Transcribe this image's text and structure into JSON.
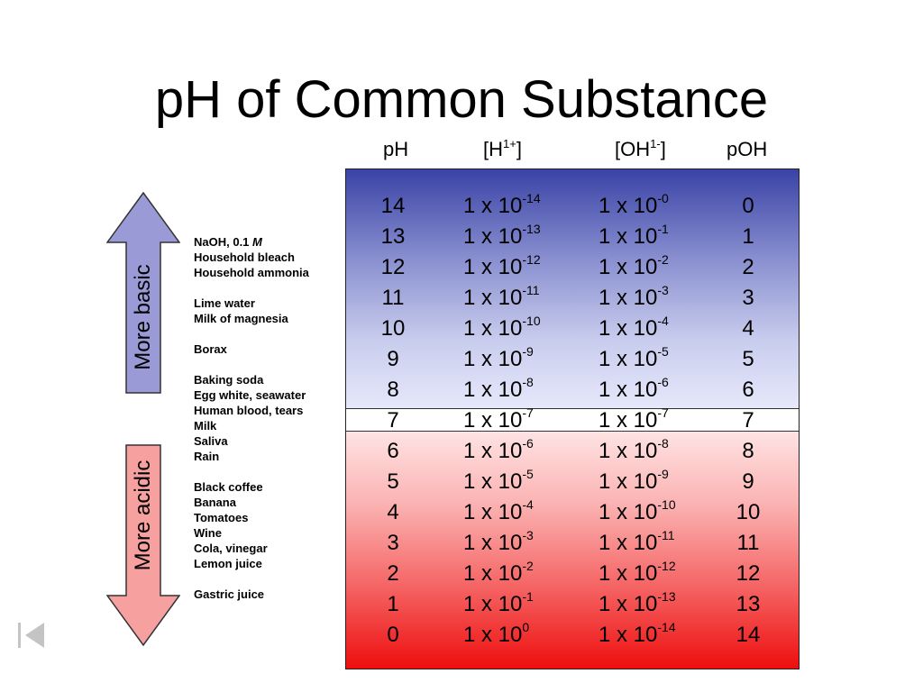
{
  "title": "pH of Common Substance",
  "headers": {
    "ph": "pH",
    "h_base": "[H",
    "h_sup": "1+",
    "h_close": "]",
    "oh_base": "[OH",
    "oh_sup": "1-",
    "oh_close": "]",
    "poh": "pOH"
  },
  "rows": [
    {
      "ph": "14",
      "h_base": "1 x 10",
      "h_exp": "-14",
      "oh_base": "1 x 10",
      "oh_exp": "-0",
      "poh": "0"
    },
    {
      "ph": "13",
      "h_base": "1 x 10",
      "h_exp": "-13",
      "oh_base": "1 x 10",
      "oh_exp": "-1",
      "poh": "1"
    },
    {
      "ph": "12",
      "h_base": "1 x 10",
      "h_exp": "-12",
      "oh_base": "1 x 10",
      "oh_exp": "-2",
      "poh": "2"
    },
    {
      "ph": "11",
      "h_base": "1 x 10",
      "h_exp": "-11",
      "oh_base": "1 x 10",
      "oh_exp": "-3",
      "poh": "3"
    },
    {
      "ph": "10",
      "h_base": "1 x 10",
      "h_exp": "-10",
      "oh_base": "1 x 10",
      "oh_exp": "-4",
      "poh": "4"
    },
    {
      "ph": "9",
      "h_base": "1 x 10",
      "h_exp": "-9",
      "oh_base": "1 x 10",
      "oh_exp": "-5",
      "poh": "5"
    },
    {
      "ph": "8",
      "h_base": "1 x 10",
      "h_exp": "-8",
      "oh_base": "1 x 10",
      "oh_exp": "-6",
      "poh": "6"
    },
    {
      "ph": "7",
      "h_base": "1 x 10",
      "h_exp": "-7",
      "oh_base": "1 x 10",
      "oh_exp": "-7",
      "poh": "7"
    },
    {
      "ph": "6",
      "h_base": "1 x 10",
      "h_exp": "-6",
      "oh_base": "1 x 10",
      "oh_exp": "-8",
      "poh": "8"
    },
    {
      "ph": "5",
      "h_base": "1 x 10",
      "h_exp": "-5",
      "oh_base": "1 x 10",
      "oh_exp": "-9",
      "poh": "9"
    },
    {
      "ph": "4",
      "h_base": "1 x 10",
      "h_exp": "-4",
      "oh_base": "1 x 10",
      "oh_exp": "-10",
      "poh": "10"
    },
    {
      "ph": "3",
      "h_base": "1 x 10",
      "h_exp": "-3",
      "oh_base": "1 x 10",
      "oh_exp": "-11",
      "poh": "11"
    },
    {
      "ph": "2",
      "h_base": "1 x 10",
      "h_exp": "-2",
      "oh_base": "1 x 10",
      "oh_exp": "-12",
      "poh": "12"
    },
    {
      "ph": "1",
      "h_base": "1 x 10",
      "h_exp": "-1",
      "oh_base": "1 x 10",
      "oh_exp": "-13",
      "poh": "13"
    },
    {
      "ph": "0",
      "h_base": "1 x 10",
      "h_exp": "0",
      "oh_base": "1 x 10",
      "oh_exp": "-14",
      "poh": "14"
    }
  ],
  "substances": [
    {
      "text": "NaOH, 0.1 ",
      "italic": "M"
    },
    {
      "text": "Household bleach"
    },
    {
      "text": "Household ammonia"
    },
    {
      "text": ""
    },
    {
      "text": "Lime water"
    },
    {
      "text": "Milk of magnesia"
    },
    {
      "text": ""
    },
    {
      "text": "Borax"
    },
    {
      "text": ""
    },
    {
      "text": "Baking soda"
    },
    {
      "text": "Egg white, seawater"
    },
    {
      "text": "Human blood, tears"
    },
    {
      "text": "Milk"
    },
    {
      "text": "Saliva"
    },
    {
      "text": "Rain"
    },
    {
      "text": ""
    },
    {
      "text": "Black coffee"
    },
    {
      "text": "Banana"
    },
    {
      "text": "Tomatoes"
    },
    {
      "text": "Wine"
    },
    {
      "text": "Cola, vinegar"
    },
    {
      "text": "Lemon juice"
    },
    {
      "text": ""
    },
    {
      "text": "Gastric juice"
    }
  ],
  "arrows": {
    "basic_label": "More basic",
    "acidic_label": "More acidic",
    "basic_color": "#9a9bd6",
    "acidic_color": "#f7a0a0"
  },
  "nav": {
    "icon": "first-slide-icon"
  }
}
